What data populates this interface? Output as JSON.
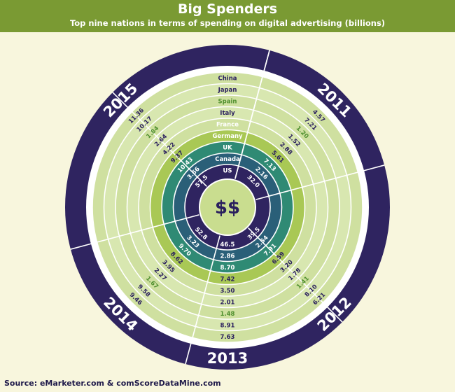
{
  "header": {
    "title": "Big Spenders",
    "subtitle": "Top nine nations in terms of spending on digital advertising (billions)"
  },
  "center_label": "$$",
  "source": "Source: eMarketer.com & comScoreDataMine.com",
  "colors": {
    "header_bg": "#7a9a33",
    "page_bg": "#f8f6dd",
    "outer_ring": "#2f2460",
    "divider": "#ffffff",
    "ring_fills": [
      "#cfe0a0",
      "#d8e7b0",
      "#cfe0a0",
      "#d8e7b0",
      "#cfe0a0",
      "#a9c855",
      "#2f8a74",
      "#2a5f78",
      "#2f2460"
    ],
    "ring_text": [
      "#2a1f5e",
      "#2a1f5e",
      "#4f8f2e",
      "#2a1f5e",
      "#ffffff",
      "#ffffff",
      "#ffffff",
      "#ffffff",
      "#ffffff"
    ],
    "value_text": [
      "#2a1f5e",
      "#2a1f5e",
      "#4f8f2e",
      "#2a1f5e",
      "#2a1f5e",
      "#2a1f5e",
      "#ffffff",
      "#ffffff",
      "#ffffff"
    ]
  },
  "chart_data": {
    "type": "radial",
    "title": "Big Spenders",
    "subtitle": "Top nine nations in terms of spending on digital advertising (billions)",
    "categories": [
      "China",
      "Japan",
      "Spain",
      "Italy",
      "France",
      "Germany",
      "UK",
      "Canada",
      "US"
    ],
    "series": [
      {
        "name": "2011",
        "values": [
          4.57,
          7.21,
          1.2,
          1.52,
          2.88,
          5.61,
          7.13,
          2.16,
          32.0
        ]
      },
      {
        "name": "2012",
        "values": [
          6.21,
          8.1,
          1.41,
          1.78,
          3.2,
          6.59,
          7.91,
          2.54,
          39.5
        ]
      },
      {
        "name": "2013",
        "values": [
          7.63,
          8.91,
          1.48,
          2.01,
          3.5,
          7.42,
          8.7,
          2.86,
          46.5
        ]
      },
      {
        "name": "2014",
        "values": [
          9.46,
          9.58,
          1.67,
          2.27,
          3.95,
          8.62,
          9.7,
          3.23,
          52.8
        ]
      },
      {
        "name": "2015",
        "values": [
          11.36,
          10.17,
          1.84,
          2.64,
          4.22,
          9.37,
          10.43,
          3.56,
          57.5
        ]
      }
    ]
  }
}
